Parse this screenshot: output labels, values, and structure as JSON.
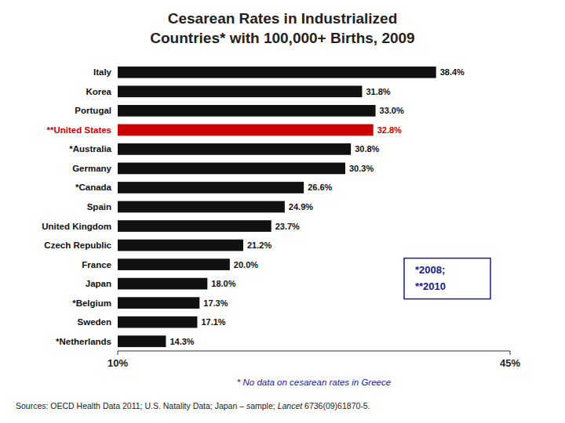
{
  "chart_data": {
    "type": "bar",
    "orientation": "horizontal",
    "title": "Cesarean Rates in Industrialized",
    "subtitle": "Countries* with 100,000+ Births, 2009",
    "categories": [
      "Italy",
      "Korea",
      "Portugal",
      "**United States",
      "*Australia",
      "Germany",
      "*Canada",
      "Spain",
      "United Kingdom",
      "Czech Republic",
      "France",
      "Japan",
      "*Belgium",
      "Sweden",
      "*Netherlands"
    ],
    "values": [
      38.4,
      31.8,
      33.0,
      32.8,
      30.8,
      30.3,
      26.6,
      24.9,
      23.7,
      21.2,
      20.0,
      18.0,
      17.3,
      17.1,
      14.3
    ],
    "value_labels": [
      "38.4%",
      "31.8%",
      "33.0%",
      "32.8%",
      "30.8%",
      "30.3%",
      "26.6%",
      "24.9%",
      "23.7%",
      "21.2%",
      "20.0%",
      "18.0%",
      "17.3%",
      "17.1%",
      "14.3%"
    ],
    "colors": [
      "#111111",
      "#111111",
      "#111111",
      "#cc0000",
      "#111111",
      "#111111",
      "#111111",
      "#111111",
      "#111111",
      "#111111",
      "#111111",
      "#111111",
      "#111111",
      "#111111",
      "#111111"
    ],
    "xlim": [
      10,
      45
    ],
    "xticks": [
      {
        "value": 10,
        "label": "10%"
      },
      {
        "value": 45,
        "label": "45%"
      }
    ],
    "data_labels": true,
    "grid": false,
    "annotations": [
      "* No data on cesarean rates in Greece",
      "*2008;",
      "**2010",
      "Sources: OECD Health Data 2011; U.S. Natality Data; Japan – sample; ",
      "Lancet",
      " 6736(09)61870-5."
    ]
  }
}
